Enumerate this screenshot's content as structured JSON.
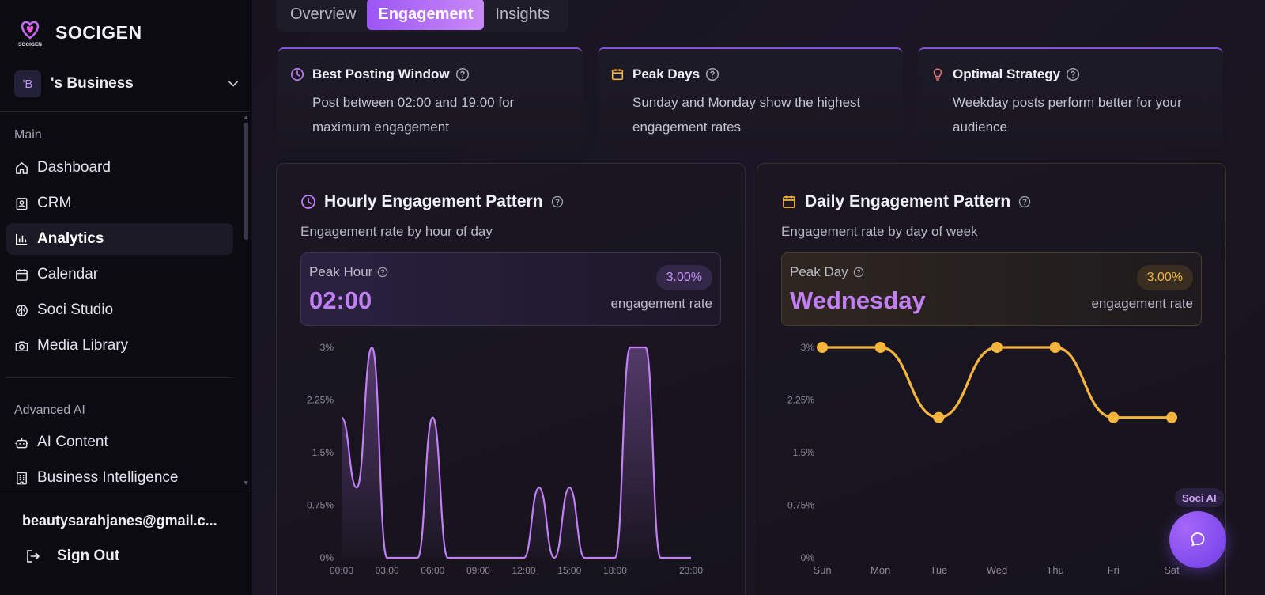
{
  "app": {
    "name": "SOCIGEN",
    "logo_text": "SOCIGEN"
  },
  "business": {
    "avatar": "'B",
    "name": "'s Business"
  },
  "sidebar": {
    "sections": [
      {
        "label": "Main",
        "items": [
          {
            "label": "Dashboard",
            "icon": "home-icon"
          },
          {
            "label": "CRM",
            "icon": "contact-card-icon"
          },
          {
            "label": "Analytics",
            "icon": "bar-chart-icon",
            "active": true
          },
          {
            "label": "Calendar",
            "icon": "calendar-icon"
          },
          {
            "label": "Soci Studio",
            "icon": "brain-icon"
          },
          {
            "label": "Media Library",
            "icon": "camera-icon"
          }
        ]
      },
      {
        "label": "Advanced AI",
        "items": [
          {
            "label": "AI Content",
            "icon": "bot-icon"
          },
          {
            "label": "Business Intelligence",
            "icon": "building-icon"
          }
        ]
      }
    ],
    "user_email": "beautysarahjanes@gmail.c...",
    "sign_out": "Sign Out"
  },
  "tabs": [
    {
      "label": "Overview"
    },
    {
      "label": "Engagement",
      "active": true
    },
    {
      "label": "Insights"
    }
  ],
  "insights": [
    {
      "title": "Best Posting Window",
      "text": "Post between 02:00 and 19:00 for maximum engagement",
      "icon": "clock-icon",
      "color": "#c27ef4"
    },
    {
      "title": "Peak Days",
      "text": "Sunday and Monday show the highest engagement rates",
      "icon": "calendar-icon",
      "color": "#f5b43c"
    },
    {
      "title": "Optimal Strategy",
      "text": "Weekday posts perform better for your audience",
      "icon": "lightbulb-icon",
      "color": "#f07878"
    }
  ],
  "hourly": {
    "title": "Hourly Engagement Pattern",
    "subtitle": "Engagement rate by hour of day",
    "peak_label": "Peak Hour",
    "peak_value": "02:00",
    "badge": "3.00%",
    "rate_label": "engagement rate"
  },
  "daily": {
    "title": "Daily Engagement Pattern",
    "subtitle": "Engagement rate by day of week",
    "peak_label": "Peak Day",
    "peak_value": "Wednesday",
    "badge": "3.00%",
    "rate_label": "engagement rate"
  },
  "soci_ai": {
    "label": "Soci AI"
  },
  "chart_data": [
    {
      "type": "area",
      "color": "#c27ef4",
      "x_ticks": [
        "00:00",
        "03:00",
        "06:00",
        "09:00",
        "12:00",
        "15:00",
        "18:00",
        "23:00"
      ],
      "y_ticks": [
        "0%",
        "0.75%",
        "1.5%",
        "2.25%",
        "3%"
      ],
      "ylim": [
        0,
        3
      ],
      "x": [
        0,
        1,
        2,
        3,
        4,
        5,
        6,
        7,
        8,
        9,
        10,
        11,
        12,
        13,
        14,
        15,
        16,
        17,
        18,
        19,
        20,
        21,
        22,
        23
      ],
      "values": [
        2,
        1,
        3,
        0,
        0,
        0,
        2,
        0,
        0,
        0,
        0,
        0,
        0,
        1,
        0,
        1,
        0,
        0,
        0,
        3,
        3,
        0,
        0,
        0
      ]
    },
    {
      "type": "line",
      "color": "#f5b43c",
      "categories": [
        "Sun",
        "Mon",
        "Tue",
        "Wed",
        "Thu",
        "Fri",
        "Sat"
      ],
      "y_ticks": [
        "0%",
        "0.75%",
        "1.5%",
        "2.25%",
        "3%"
      ],
      "ylim": [
        0,
        3
      ],
      "values": [
        3,
        3,
        2,
        3,
        3,
        2,
        2
      ]
    }
  ]
}
